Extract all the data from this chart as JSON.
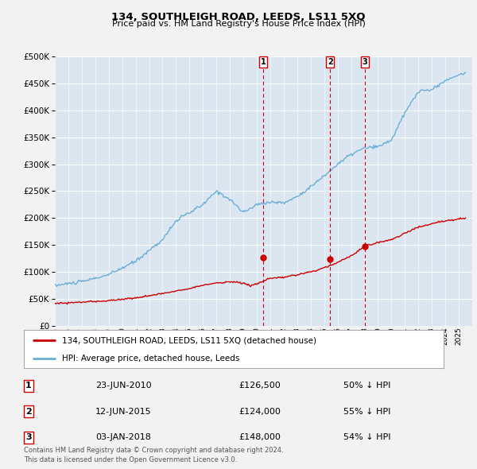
{
  "title": "134, SOUTHLEIGH ROAD, LEEDS, LS11 5XQ",
  "subtitle": "Price paid vs. HM Land Registry's House Price Index (HPI)",
  "footer": "Contains HM Land Registry data © Crown copyright and database right 2024.\nThis data is licensed under the Open Government Licence v3.0.",
  "legend_entries": [
    "134, SOUTHLEIGH ROAD, LEEDS, LS11 5XQ (detached house)",
    "HPI: Average price, detached house, Leeds"
  ],
  "transactions": [
    {
      "label": "1",
      "date": "23-JUN-2010",
      "price": "£126,500",
      "pct": "50% ↓ HPI",
      "year": 2010.47
    },
    {
      "label": "2",
      "date": "12-JUN-2015",
      "price": "£124,000",
      "pct": "55% ↓ HPI",
      "year": 2015.44
    },
    {
      "label": "3",
      "date": "03-JAN-2018",
      "price": "£148,000",
      "pct": "54% ↓ HPI",
      "year": 2018.01
    }
  ],
  "hpi_color": "#6baed6",
  "price_color": "#cc0000",
  "background_color": "#dce6f1",
  "ylim": [
    0,
    500000
  ],
  "yticks": [
    0,
    50000,
    100000,
    150000,
    200000,
    250000,
    300000,
    350000,
    400000,
    450000,
    500000
  ],
  "xmin": 1995,
  "xmax": 2026
}
